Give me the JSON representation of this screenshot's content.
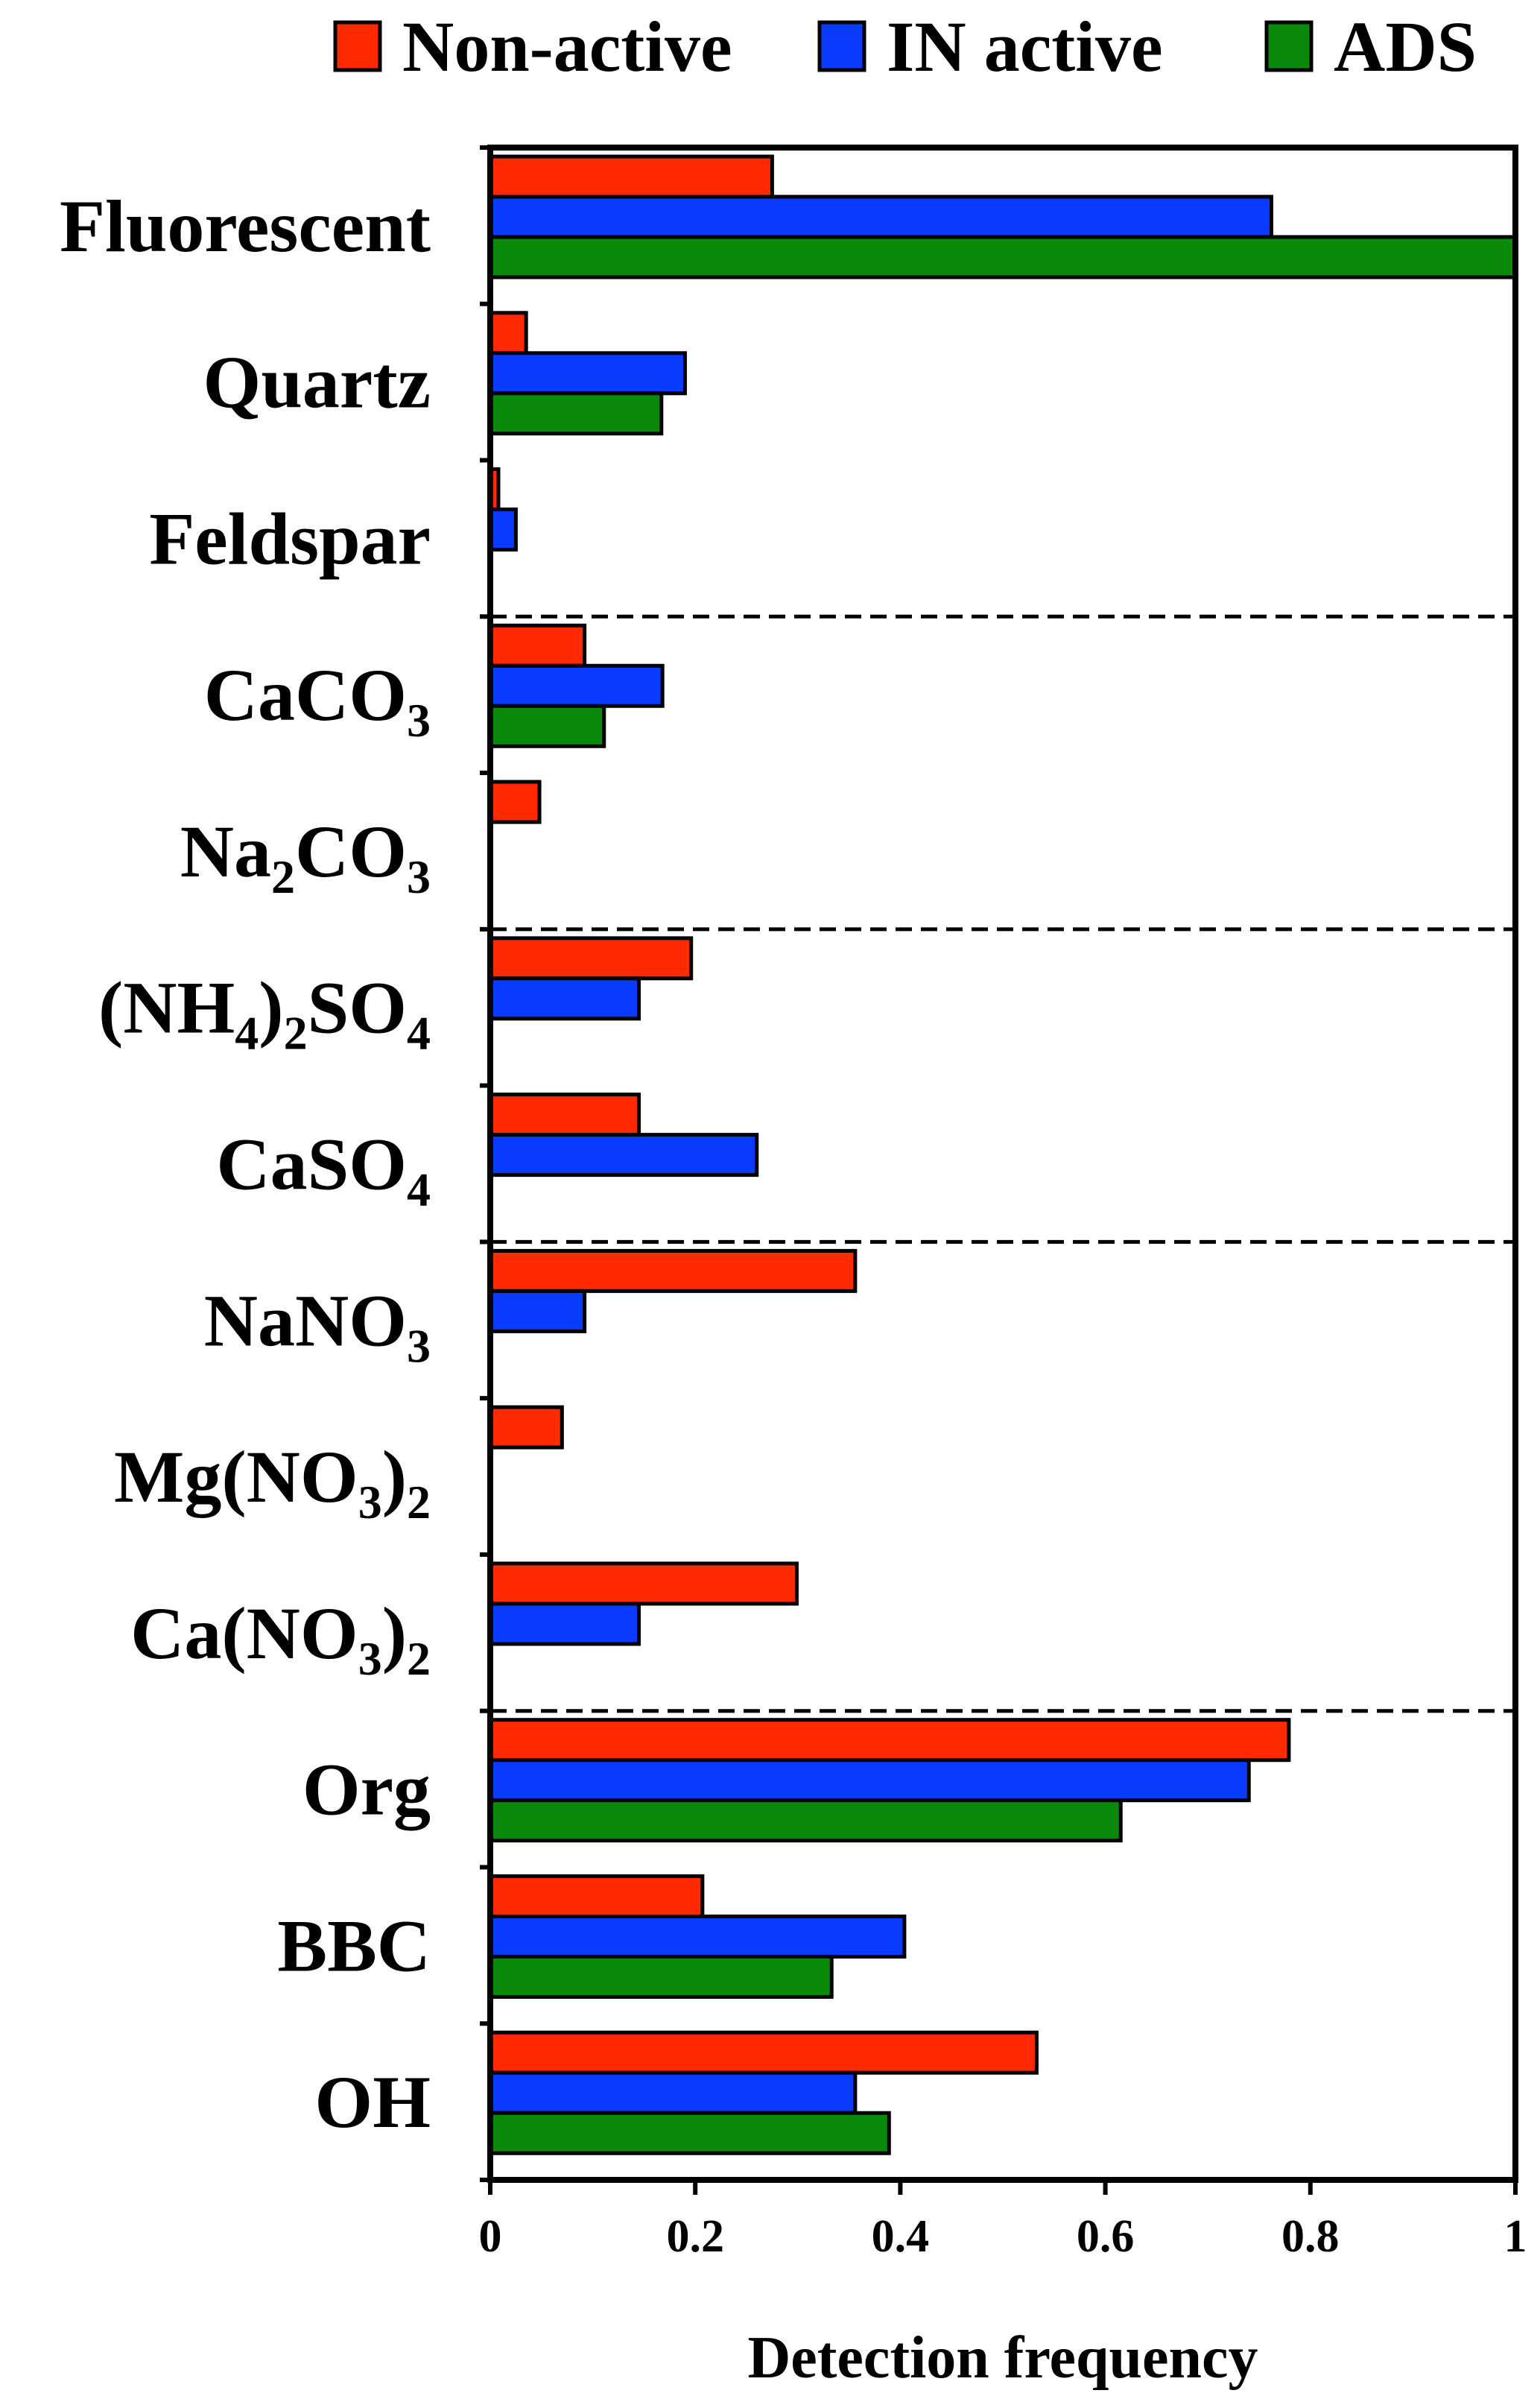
{
  "chart_data": {
    "type": "bar",
    "orientation": "horizontal",
    "xlabel": "Detection frequency",
    "ylabel": "",
    "xlim": [
      0,
      1
    ],
    "xticks": [
      "0",
      "0.2",
      "0.4",
      "0.6",
      "0.8",
      "1"
    ],
    "legend_position": "top",
    "categories": [
      {
        "parts": [
          [
            "Fluorescent",
            ""
          ]
        ]
      },
      {
        "parts": [
          [
            "Quartz",
            ""
          ]
        ]
      },
      {
        "parts": [
          [
            "Feldspar",
            ""
          ]
        ]
      },
      {
        "parts": [
          [
            "CaCO",
            ""
          ],
          [
            "3",
            "sub"
          ]
        ]
      },
      {
        "parts": [
          [
            "Na",
            ""
          ],
          [
            "2",
            "sub"
          ],
          [
            "CO",
            ""
          ],
          [
            "3",
            "sub"
          ]
        ]
      },
      {
        "parts": [
          [
            "(NH",
            ""
          ],
          [
            "4",
            "sub"
          ],
          [
            ")",
            ""
          ],
          [
            "2",
            "sub"
          ],
          [
            "SO",
            ""
          ],
          [
            "4",
            "sub"
          ]
        ]
      },
      {
        "parts": [
          [
            "CaSO",
            ""
          ],
          [
            "4",
            "sub"
          ]
        ]
      },
      {
        "parts": [
          [
            "NaNO",
            ""
          ],
          [
            "3",
            "sub"
          ]
        ]
      },
      {
        "parts": [
          [
            "Mg(NO",
            ""
          ],
          [
            "3",
            "sub"
          ],
          [
            ")",
            ""
          ],
          [
            "2",
            "sub"
          ]
        ]
      },
      {
        "parts": [
          [
            "Ca(NO",
            ""
          ],
          [
            "3",
            "sub"
          ],
          [
            ")",
            ""
          ],
          [
            "2",
            "sub"
          ]
        ]
      },
      {
        "parts": [
          [
            "Org",
            ""
          ]
        ]
      },
      {
        "parts": [
          [
            "BBC",
            ""
          ]
        ]
      },
      {
        "parts": [
          [
            "OH",
            ""
          ]
        ]
      }
    ],
    "separators_after_index": [
      2,
      4,
      6,
      9
    ],
    "series": [
      {
        "name": "Non-active",
        "color": "#ff2a00",
        "values": [
          0.275,
          0.035,
          0.008,
          0.092,
          0.048,
          0.196,
          0.145,
          0.356,
          0.07,
          0.299,
          0.779,
          0.207,
          0.533
        ]
      },
      {
        "name": "IN active",
        "color": "#0a3cff",
        "values": [
          0.762,
          0.19,
          0.025,
          0.168,
          0,
          0.145,
          0.26,
          0.092,
          0,
          0.145,
          0.74,
          0.404,
          0.356
        ]
      },
      {
        "name": "ADS",
        "color": "#0a8a0a",
        "values": [
          1.0,
          0.167,
          0,
          0.111,
          0,
          0,
          0,
          0,
          0,
          0,
          0.615,
          0.333,
          0.389
        ]
      }
    ]
  }
}
